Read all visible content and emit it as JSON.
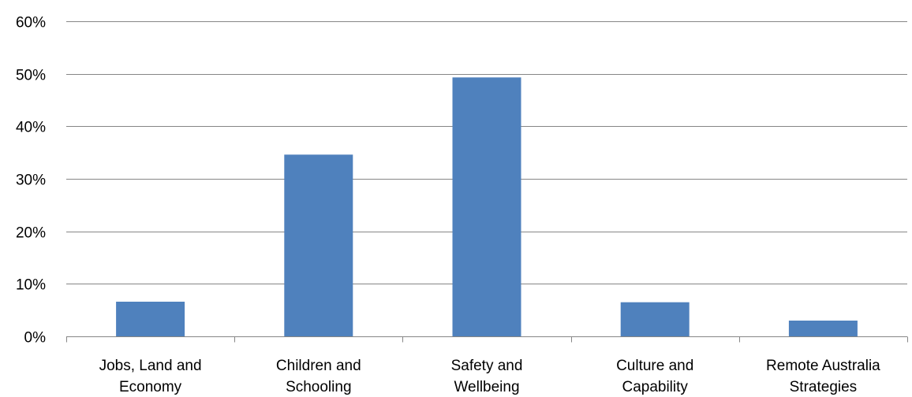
{
  "chart_data": {
    "type": "bar",
    "title": "",
    "xlabel": "",
    "ylabel": "",
    "categories": [
      [
        "Jobs, Land and",
        "Economy"
      ],
      [
        "Children and",
        "Schooling"
      ],
      [
        "Safety and",
        "Wellbeing"
      ],
      [
        "Culture and",
        "Capability"
      ],
      [
        "Remote Australia",
        "Strategies"
      ]
    ],
    "values": [
      6.6,
      34.6,
      49.3,
      6.5,
      3.0
    ],
    "ylim": [
      0,
      60
    ],
    "yticks": [
      "0%",
      "10%",
      "20%",
      "30%",
      "40%",
      "50%",
      "60%"
    ],
    "yunit": "%",
    "grid": true,
    "legend": "none",
    "bar_color": "#4F81BD",
    "grid_color": "#868686"
  }
}
